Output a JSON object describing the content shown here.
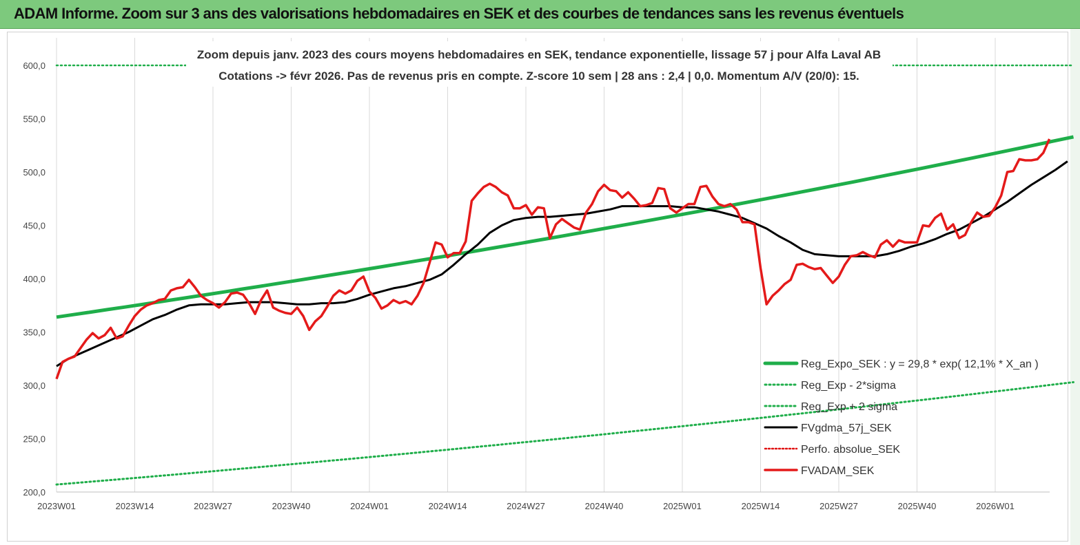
{
  "header": {
    "title": "ADAM Informe. Zoom sur 3 ans des valorisations hebdomadaires en SEK et des courbes de tendances sans les revenus éventuels"
  },
  "chart_data": {
    "type": "line",
    "title_line1": "Zoom depuis janv. 2023 des cours moyens hebdomadaires en SEK, tendance exponentielle, lissage 57 j pour Alfa Laval AB",
    "title_line2": "Cotations -> févr 2026.  Pas de revenus pris en compte. Z-score 10 sem  | 28 ans : 2,4 | 0,0. Momentum A/V (20/0): 15.",
    "x_tick_labels": [
      "2023W01",
      "2023W14",
      "2023W27",
      "2023W40",
      "2024W01",
      "2024W14",
      "2024W27",
      "2024W40",
      "2025W01",
      "2025W14",
      "2025W27",
      "2025W40",
      "2026W01"
    ],
    "y_tick_labels": [
      "200,0",
      "250,0",
      "300,0",
      "350,0",
      "400,0",
      "450,0",
      "500,0",
      "550,0",
      "600,0"
    ],
    "ylim": [
      200,
      600
    ],
    "x_range_weeks": [
      0,
      162
    ],
    "grid": "vertical",
    "legend_position": "bottom-right",
    "colors": {
      "reg": "#1fae4a",
      "band": "#1fae4a",
      "fv57": "#000000",
      "perfo": "#e01010",
      "adam": "#e41a1a"
    },
    "series": [
      {
        "name": "Reg_Expo_SEK : y = 29,8 * exp( 12,1% *  X_an )",
        "key": "reg",
        "style": "solid-thick",
        "start": 364,
        "end": 533
      },
      {
        "name": "Reg_Exp - 2*sigma",
        "key": "lower",
        "style": "dotted",
        "start": 207,
        "end": 303
      },
      {
        "name": "Reg_Exp + 2 sigma",
        "key": "upper",
        "style": "dotted",
        "start": 600,
        "end": 600
      },
      {
        "name": "FVgdma_57j_SEK",
        "key": "fv57",
        "style": "solid",
        "points": [
          [
            0,
            318
          ],
          [
            2,
            325
          ],
          [
            4,
            330
          ],
          [
            6,
            335
          ],
          [
            8,
            340
          ],
          [
            10,
            345
          ],
          [
            12,
            350
          ],
          [
            14,
            356
          ],
          [
            16,
            362
          ],
          [
            18,
            366
          ],
          [
            20,
            371
          ],
          [
            22,
            375
          ],
          [
            24,
            376
          ],
          [
            26,
            376
          ],
          [
            28,
            376
          ],
          [
            30,
            377
          ],
          [
            32,
            378
          ],
          [
            34,
            378
          ],
          [
            36,
            378
          ],
          [
            38,
            377
          ],
          [
            40,
            376
          ],
          [
            42,
            376
          ],
          [
            44,
            377
          ],
          [
            46,
            377
          ],
          [
            48,
            378
          ],
          [
            50,
            381
          ],
          [
            52,
            385
          ],
          [
            54,
            388
          ],
          [
            56,
            391
          ],
          [
            58,
            393
          ],
          [
            60,
            396
          ],
          [
            62,
            399
          ],
          [
            64,
            404
          ],
          [
            66,
            413
          ],
          [
            68,
            423
          ],
          [
            70,
            432
          ],
          [
            72,
            443
          ],
          [
            74,
            450
          ],
          [
            76,
            455
          ],
          [
            78,
            457
          ],
          [
            80,
            458
          ],
          [
            82,
            458
          ],
          [
            84,
            459
          ],
          [
            86,
            460
          ],
          [
            88,
            461
          ],
          [
            90,
            463
          ],
          [
            92,
            465
          ],
          [
            94,
            468
          ],
          [
            96,
            468
          ],
          [
            98,
            468
          ],
          [
            100,
            468
          ],
          [
            102,
            468
          ],
          [
            104,
            467
          ],
          [
            106,
            467
          ],
          [
            108,
            465
          ],
          [
            110,
            463
          ],
          [
            112,
            460
          ],
          [
            114,
            457
          ],
          [
            116,
            452
          ],
          [
            118,
            447
          ],
          [
            120,
            440
          ],
          [
            122,
            434
          ],
          [
            124,
            427
          ],
          [
            126,
            423
          ],
          [
            128,
            422
          ],
          [
            130,
            421
          ],
          [
            132,
            421
          ],
          [
            134,
            421
          ],
          [
            136,
            421
          ],
          [
            138,
            423
          ],
          [
            140,
            426
          ],
          [
            142,
            430
          ],
          [
            144,
            433
          ],
          [
            146,
            437
          ],
          [
            148,
            442
          ],
          [
            150,
            446
          ],
          [
            152,
            452
          ],
          [
            154,
            458
          ],
          [
            156,
            465
          ],
          [
            158,
            472
          ],
          [
            160,
            480
          ],
          [
            162,
            488
          ],
          [
            164,
            495
          ],
          [
            166,
            502
          ],
          [
            168,
            510
          ]
        ]
      },
      {
        "name": "Perfo. absolue_SEK",
        "key": "perfo",
        "style": "dotted",
        "points": []
      },
      {
        "name": "FVADAM_SEK",
        "key": "adam",
        "style": "solid-thick",
        "points": [
          [
            0,
            306
          ],
          [
            1,
            322
          ],
          [
            2,
            325
          ],
          [
            3,
            327
          ],
          [
            4,
            335
          ],
          [
            5,
            343
          ],
          [
            6,
            349
          ],
          [
            7,
            344
          ],
          [
            8,
            347
          ],
          [
            9,
            354
          ],
          [
            10,
            344
          ],
          [
            11,
            346
          ],
          [
            12,
            356
          ],
          [
            13,
            365
          ],
          [
            14,
            371
          ],
          [
            15,
            375
          ],
          [
            16,
            377
          ],
          [
            17,
            380
          ],
          [
            18,
            381
          ],
          [
            19,
            389
          ],
          [
            20,
            391
          ],
          [
            21,
            392
          ],
          [
            22,
            399
          ],
          [
            23,
            392
          ],
          [
            24,
            384
          ],
          [
            25,
            380
          ],
          [
            26,
            377
          ],
          [
            27,
            373
          ],
          [
            28,
            378
          ],
          [
            29,
            386
          ],
          [
            30,
            387
          ],
          [
            31,
            385
          ],
          [
            32,
            377
          ],
          [
            33,
            367
          ],
          [
            34,
            380
          ],
          [
            35,
            389
          ],
          [
            36,
            373
          ],
          [
            37,
            370
          ],
          [
            38,
            368
          ],
          [
            39,
            367
          ],
          [
            40,
            373
          ],
          [
            41,
            365
          ],
          [
            42,
            352
          ],
          [
            43,
            360
          ],
          [
            44,
            365
          ],
          [
            45,
            374
          ],
          [
            46,
            384
          ],
          [
            47,
            389
          ],
          [
            48,
            386
          ],
          [
            49,
            389
          ],
          [
            50,
            398
          ],
          [
            51,
            402
          ],
          [
            52,
            388
          ],
          [
            53,
            382
          ],
          [
            54,
            372
          ],
          [
            55,
            375
          ],
          [
            56,
            380
          ],
          [
            57,
            377
          ],
          [
            58,
            379
          ],
          [
            59,
            376
          ],
          [
            60,
            384
          ],
          [
            61,
            396
          ],
          [
            62,
            415
          ],
          [
            63,
            434
          ],
          [
            64,
            432
          ],
          [
            65,
            420
          ],
          [
            66,
            424
          ],
          [
            67,
            424
          ],
          [
            68,
            435
          ],
          [
            69,
            473
          ],
          [
            70,
            480
          ],
          [
            71,
            486
          ],
          [
            72,
            489
          ],
          [
            73,
            486
          ],
          [
            74,
            481
          ],
          [
            75,
            478
          ],
          [
            76,
            466
          ],
          [
            77,
            466
          ],
          [
            78,
            469
          ],
          [
            79,
            460
          ],
          [
            80,
            467
          ],
          [
            81,
            466
          ],
          [
            82,
            438
          ],
          [
            83,
            451
          ],
          [
            84,
            456
          ],
          [
            85,
            452
          ],
          [
            86,
            448
          ],
          [
            87,
            446
          ],
          [
            88,
            462
          ],
          [
            89,
            470
          ],
          [
            90,
            482
          ],
          [
            91,
            488
          ],
          [
            92,
            483
          ],
          [
            93,
            482
          ],
          [
            94,
            476
          ],
          [
            95,
            481
          ],
          [
            96,
            475
          ],
          [
            97,
            468
          ],
          [
            98,
            469
          ],
          [
            99,
            471
          ],
          [
            100,
            485
          ],
          [
            101,
            484
          ],
          [
            102,
            466
          ],
          [
            103,
            462
          ],
          [
            104,
            466
          ],
          [
            105,
            470
          ],
          [
            106,
            470
          ],
          [
            107,
            486
          ],
          [
            108,
            487
          ],
          [
            109,
            477
          ],
          [
            110,
            470
          ],
          [
            111,
            468
          ],
          [
            112,
            470
          ],
          [
            113,
            465
          ],
          [
            114,
            453
          ],
          [
            115,
            453
          ],
          [
            116,
            451
          ],
          [
            117,
            410
          ],
          [
            118,
            376
          ],
          [
            119,
            384
          ],
          [
            120,
            389
          ],
          [
            121,
            395
          ],
          [
            122,
            399
          ],
          [
            123,
            413
          ],
          [
            124,
            414
          ],
          [
            125,
            411
          ],
          [
            126,
            409
          ],
          [
            127,
            410
          ],
          [
            128,
            403
          ],
          [
            129,
            396
          ],
          [
            130,
            402
          ],
          [
            131,
            413
          ],
          [
            132,
            421
          ],
          [
            133,
            422
          ],
          [
            134,
            425
          ],
          [
            135,
            422
          ],
          [
            136,
            420
          ],
          [
            137,
            432
          ],
          [
            138,
            436
          ],
          [
            139,
            430
          ],
          [
            140,
            436
          ],
          [
            141,
            434
          ],
          [
            142,
            434
          ],
          [
            143,
            434
          ],
          [
            144,
            450
          ],
          [
            145,
            449
          ],
          [
            146,
            457
          ],
          [
            147,
            461
          ],
          [
            148,
            446
          ],
          [
            149,
            451
          ],
          [
            150,
            438
          ],
          [
            151,
            441
          ],
          [
            152,
            453
          ],
          [
            153,
            462
          ],
          [
            154,
            458
          ],
          [
            155,
            459
          ],
          [
            156,
            467
          ],
          [
            157,
            478
          ],
          [
            158,
            500
          ],
          [
            159,
            501
          ],
          [
            160,
            512
          ],
          [
            161,
            511
          ],
          [
            162,
            511
          ],
          [
            163,
            512
          ],
          [
            164,
            518
          ],
          [
            165,
            531
          ]
        ]
      }
    ]
  }
}
